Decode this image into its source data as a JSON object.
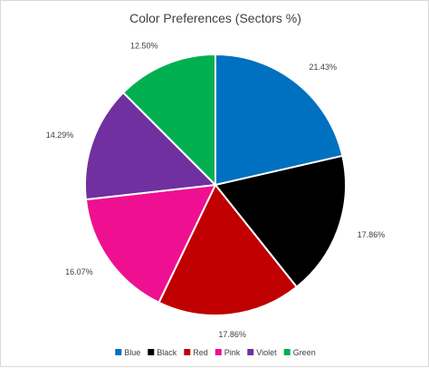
{
  "chart_data": {
    "type": "pie",
    "title": "Color Preferences (Sectors %)",
    "categories": [
      "Blue",
      "Black",
      "Red",
      "Pink",
      "Violet",
      "Green"
    ],
    "values": [
      21.43,
      17.86,
      17.86,
      16.07,
      14.29,
      12.5
    ],
    "data_labels": [
      "21.43%",
      "17.86%",
      "17.86%",
      "16.07%",
      "14.29%",
      "12.50%"
    ],
    "colors": [
      "#0070c0",
      "#000000",
      "#c00000",
      "#ee1090",
      "#7030a0",
      "#00b050"
    ],
    "legend": "bottom"
  }
}
